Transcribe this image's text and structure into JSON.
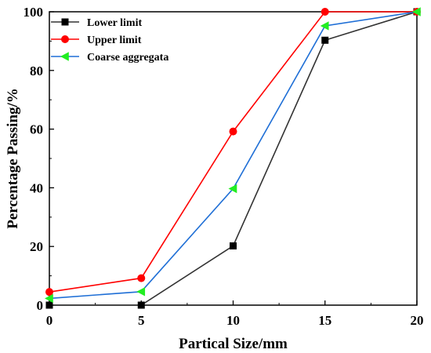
{
  "chart_data": {
    "type": "line",
    "xlabel": "Partical Size/mm",
    "ylabel": "Percentage Passing/%",
    "xlim": [
      0,
      20
    ],
    "ylim": [
      0,
      100
    ],
    "xticks": [
      0,
      5,
      10,
      15,
      20
    ],
    "yticks": [
      0,
      20,
      40,
      60,
      80,
      100
    ],
    "grid": false,
    "legend_position": "top-left",
    "series": [
      {
        "name": "Lower limit",
        "color": "#333333",
        "marker": "square",
        "marker_color": "#000000",
        "x": [
          0,
          5,
          10,
          15,
          20
        ],
        "y": [
          0,
          0,
          20.2,
          90.3,
          100
        ]
      },
      {
        "name": "Upper limit",
        "color": "#ff0000",
        "marker": "circle",
        "marker_color": "#ff0000",
        "x": [
          0,
          5,
          10,
          15,
          20
        ],
        "y": [
          4.5,
          9.2,
          59.2,
          100,
          100
        ]
      },
      {
        "name": "Coarse aggregata",
        "color": "#1f6fd6",
        "marker": "triangle-left",
        "marker_color": "#22ee22",
        "x": [
          0,
          5,
          10,
          15,
          20
        ],
        "y": [
          2.3,
          4.6,
          39.7,
          95.2,
          100
        ]
      }
    ]
  }
}
